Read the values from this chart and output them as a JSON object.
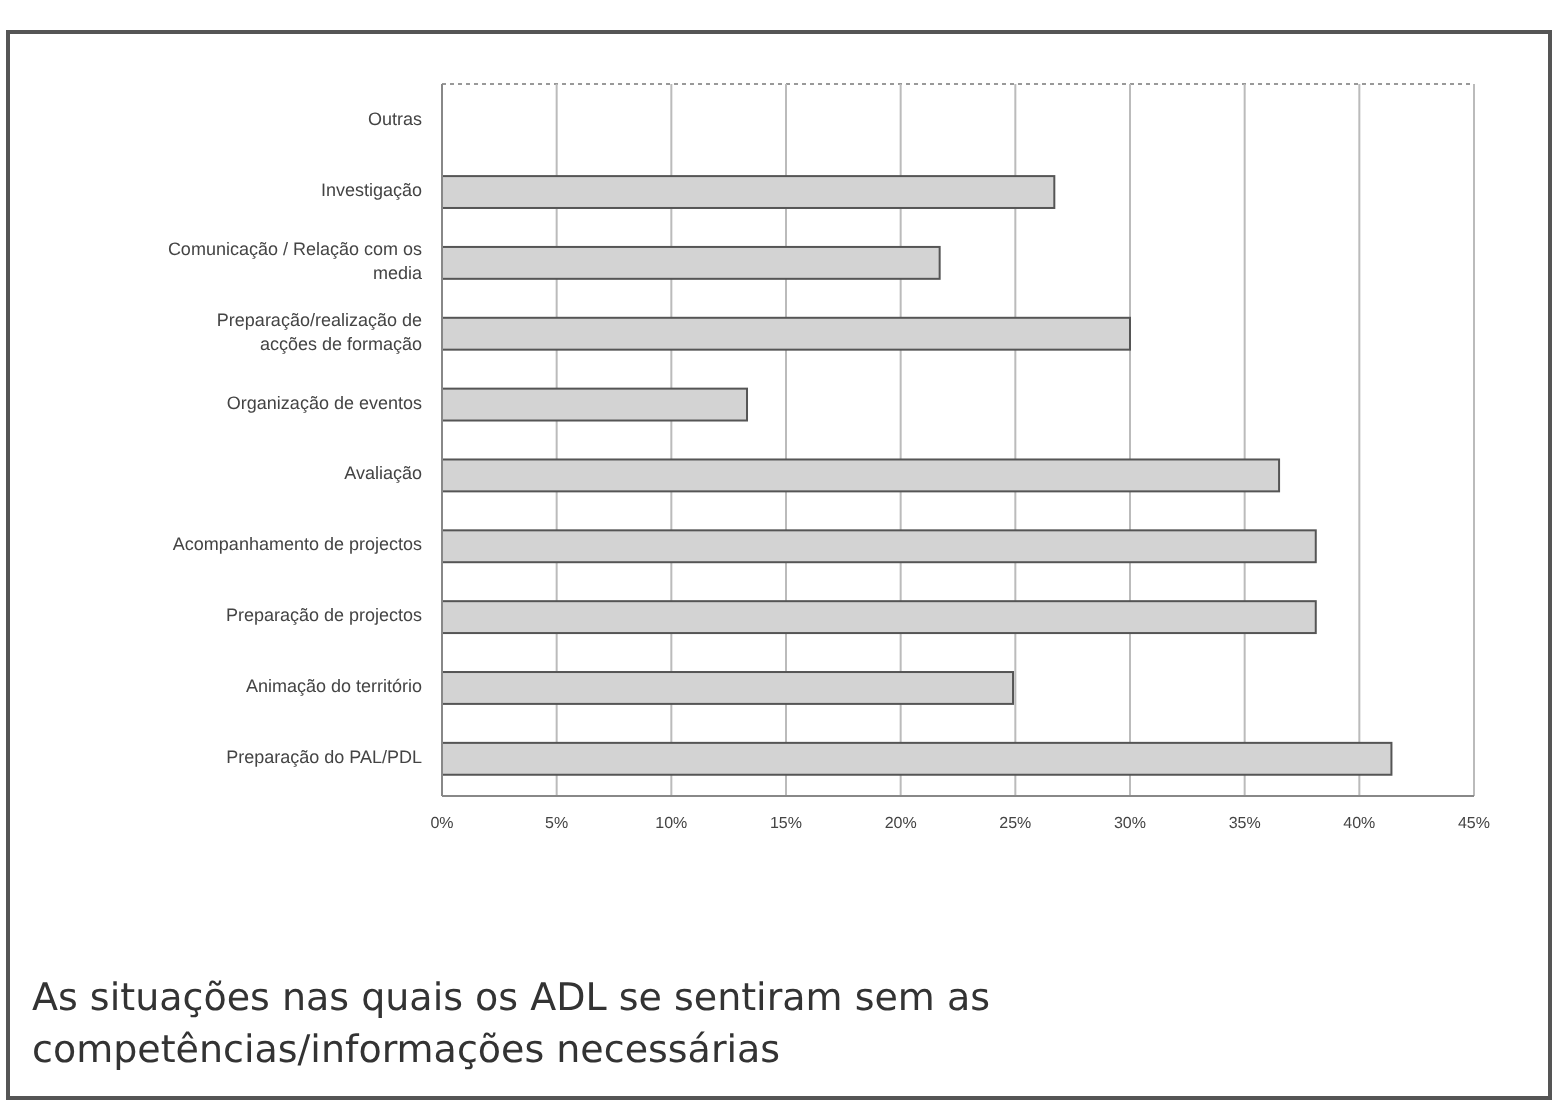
{
  "chart_data": {
    "type": "bar",
    "orientation": "horizontal",
    "title": "As situações nas quais os ADL se sentiram sem as competências/informações necessárias",
    "categories": [
      "Outras",
      "Investigação",
      "Comunicação / Relação com os media",
      "Preparação/realização de acções de formação",
      "Organização de eventos",
      "Avaliação",
      "Acompanhamento de projectos",
      "Preparação de projectos",
      "Animação do território",
      "Preparação do PAL/PDL"
    ],
    "values": [
      0,
      26.7,
      21.7,
      30,
      13.3,
      36.5,
      38.1,
      38.1,
      24.9,
      41.4
    ],
    "color": "#d3d3d3",
    "xlim": [
      0,
      45
    ],
    "xticks": [
      {
        "value": 0,
        "label": "0%"
      },
      {
        "value": 5,
        "label": "5%"
      },
      {
        "value": 10,
        "label": "10%"
      },
      {
        "value": 15,
        "label": "15%"
      },
      {
        "value": 20,
        "label": "20%"
      },
      {
        "value": 25,
        "label": "25%"
      },
      {
        "value": 30,
        "label": "30%"
      },
      {
        "value": 35,
        "label": "35%"
      },
      {
        "value": 40,
        "label": "40%"
      },
      {
        "value": 45,
        "label": "45%"
      }
    ],
    "grid": "x"
  }
}
